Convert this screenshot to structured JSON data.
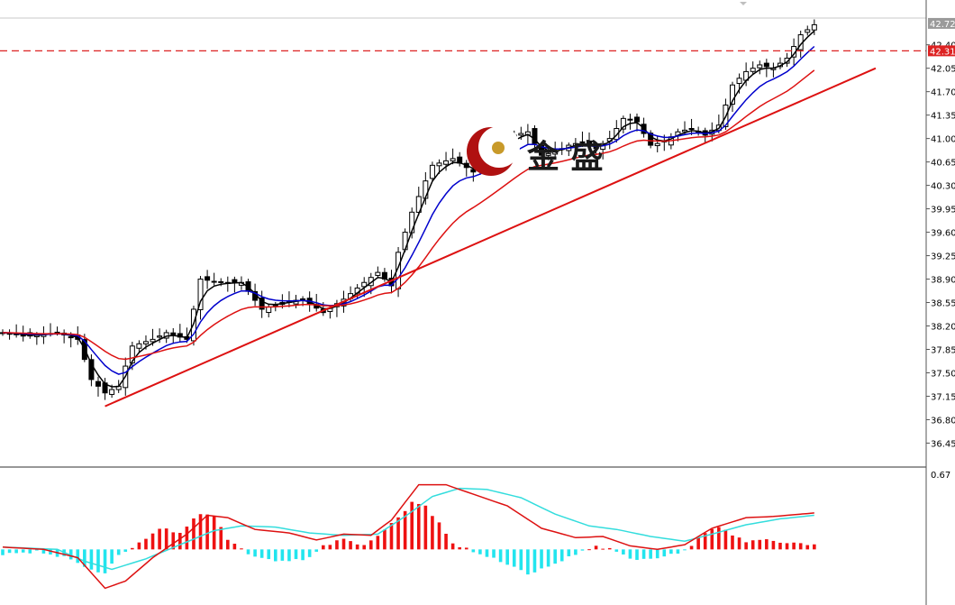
{
  "watermark": {
    "brand_text": "金 盛"
  },
  "colors": {
    "background": "#ffffff",
    "candle": "#000000",
    "ma_fast": "#000000",
    "ma_mid": "#0000cc",
    "ma_slow": "#dd1111",
    "trendline": "#dd1111",
    "price_line": "#dd2222",
    "macd_line": "#dd1111",
    "signal_line": "#33dddd",
    "hist_positive": "#ee1111",
    "hist_negative": "#22e5ee"
  },
  "chart_data": [
    {
      "type": "candlestick",
      "title": "",
      "ylim": [
        36.2,
        42.8
      ],
      "y_ticks": [
        "42.40",
        "42.05",
        "41.70",
        "41.35",
        "41.00",
        "40.65",
        "40.30",
        "39.95",
        "39.60",
        "39.25",
        "38.90",
        "38.55",
        "38.20",
        "37.85",
        "37.50",
        "37.15",
        "36.80",
        "36.45"
      ],
      "price_labels": {
        "top_label": "42.72",
        "current_price": "42.31"
      },
      "ohlc_keypoints": [
        {
          "i": 0,
          "c": 38.1
        },
        {
          "i": 4,
          "c": 38.05
        },
        {
          "i": 8,
          "c": 38.1
        },
        {
          "i": 11,
          "c": 38.0
        },
        {
          "i": 13,
          "c": 37.4
        },
        {
          "i": 15,
          "c": 37.2
        },
        {
          "i": 17,
          "c": 37.3
        },
        {
          "i": 19,
          "c": 37.9
        },
        {
          "i": 22,
          "c": 38.0
        },
        {
          "i": 24,
          "c": 38.1
        },
        {
          "i": 27,
          "c": 38.0
        },
        {
          "i": 29,
          "c": 38.9
        },
        {
          "i": 32,
          "c": 38.85
        },
        {
          "i": 35,
          "c": 38.85
        },
        {
          "i": 38,
          "c": 38.45
        },
        {
          "i": 41,
          "c": 38.55
        },
        {
          "i": 44,
          "c": 38.6
        },
        {
          "i": 47,
          "c": 38.4
        },
        {
          "i": 50,
          "c": 38.6
        },
        {
          "i": 53,
          "c": 38.85
        },
        {
          "i": 55,
          "c": 39.0
        },
        {
          "i": 57,
          "c": 38.8
        },
        {
          "i": 58,
          "c": 39.3
        },
        {
          "i": 60,
          "c": 39.9
        },
        {
          "i": 63,
          "c": 40.6
        },
        {
          "i": 66,
          "c": 40.7
        },
        {
          "i": 69,
          "c": 40.5
        },
        {
          "i": 72,
          "c": 40.8
        },
        {
          "i": 75,
          "c": 41.05
        },
        {
          "i": 77,
          "c": 41.1
        },
        {
          "i": 79,
          "c": 40.75
        },
        {
          "i": 81,
          "c": 40.8
        },
        {
          "i": 83,
          "c": 40.9
        },
        {
          "i": 85,
          "c": 40.95
        },
        {
          "i": 87,
          "c": 40.85
        },
        {
          "i": 89,
          "c": 41.0
        },
        {
          "i": 91,
          "c": 41.3
        },
        {
          "i": 93,
          "c": 41.25
        },
        {
          "i": 95,
          "c": 40.9
        },
        {
          "i": 97,
          "c": 40.95
        },
        {
          "i": 99,
          "c": 41.1
        },
        {
          "i": 101,
          "c": 41.15
        },
        {
          "i": 103,
          "c": 41.05
        },
        {
          "i": 105,
          "c": 41.2
        },
        {
          "i": 107,
          "c": 41.8
        },
        {
          "i": 109,
          "c": 42.0
        },
        {
          "i": 111,
          "c": 42.1
        },
        {
          "i": 113,
          "c": 42.05
        },
        {
          "i": 115,
          "c": 42.2
        },
        {
          "i": 117,
          "c": 42.55
        },
        {
          "i": 119,
          "c": 42.7
        }
      ],
      "moving_averages": [
        {
          "name": "",
          "color": "ma_fast",
          "period": "fast"
        },
        {
          "name": "",
          "color": "ma_mid",
          "period": "mid"
        },
        {
          "name": "",
          "color": "ma_slow",
          "period": "slow"
        }
      ],
      "trendline": {
        "from": {
          "i": 15,
          "price": 37.0
        },
        "to": {
          "i": 128,
          "price": 42.05
        }
      }
    },
    {
      "type": "macd",
      "title": "",
      "ylim": [
        -0.45,
        0.67
      ],
      "y_ticks": [
        "0.67"
      ],
      "histogram_keypoints": [
        {
          "i": 0,
          "v": -0.04
        },
        {
          "i": 5,
          "v": -0.02
        },
        {
          "i": 10,
          "v": -0.08
        },
        {
          "i": 13,
          "v": -0.18
        },
        {
          "i": 15,
          "v": -0.2
        },
        {
          "i": 17,
          "v": -0.05
        },
        {
          "i": 20,
          "v": 0.05
        },
        {
          "i": 23,
          "v": 0.18
        },
        {
          "i": 26,
          "v": 0.14
        },
        {
          "i": 29,
          "v": 0.31
        },
        {
          "i": 31,
          "v": 0.28
        },
        {
          "i": 33,
          "v": 0.09
        },
        {
          "i": 36,
          "v": -0.04
        },
        {
          "i": 39,
          "v": -0.09
        },
        {
          "i": 42,
          "v": -0.1
        },
        {
          "i": 45,
          "v": -0.07
        },
        {
          "i": 47,
          "v": 0.03
        },
        {
          "i": 50,
          "v": 0.09
        },
        {
          "i": 53,
          "v": 0.03
        },
        {
          "i": 55,
          "v": 0.12
        },
        {
          "i": 58,
          "v": 0.27
        },
        {
          "i": 60,
          "v": 0.4
        },
        {
          "i": 62,
          "v": 0.37
        },
        {
          "i": 64,
          "v": 0.22
        },
        {
          "i": 66,
          "v": 0.05
        },
        {
          "i": 69,
          "v": -0.02
        },
        {
          "i": 72,
          "v": -0.08
        },
        {
          "i": 75,
          "v": -0.15
        },
        {
          "i": 77,
          "v": -0.21
        },
        {
          "i": 79,
          "v": -0.17
        },
        {
          "i": 81,
          "v": -0.12
        },
        {
          "i": 83,
          "v": -0.07
        },
        {
          "i": 85,
          "v": -0.01
        },
        {
          "i": 87,
          "v": 0.02
        },
        {
          "i": 89,
          "v": 0.01
        },
        {
          "i": 91,
          "v": -0.05
        },
        {
          "i": 93,
          "v": -0.09
        },
        {
          "i": 95,
          "v": -0.08
        },
        {
          "i": 97,
          "v": -0.06
        },
        {
          "i": 99,
          "v": -0.03
        },
        {
          "i": 101,
          "v": 0.03
        },
        {
          "i": 103,
          "v": 0.15
        },
        {
          "i": 105,
          "v": 0.19
        },
        {
          "i": 107,
          "v": 0.13
        },
        {
          "i": 109,
          "v": 0.06
        },
        {
          "i": 111,
          "v": 0.09
        },
        {
          "i": 114,
          "v": 0.06
        },
        {
          "i": 117,
          "v": 0.05
        },
        {
          "i": 119,
          "v": 0.04
        }
      ],
      "macd_keypoints": [
        {
          "i": 0,
          "v": 0.02
        },
        {
          "i": 6,
          "v": 0.0
        },
        {
          "i": 11,
          "v": -0.07
        },
        {
          "i": 15,
          "v": -0.33
        },
        {
          "i": 18,
          "v": -0.27
        },
        {
          "i": 22,
          "v": -0.07
        },
        {
          "i": 27,
          "v": 0.13
        },
        {
          "i": 30,
          "v": 0.29
        },
        {
          "i": 33,
          "v": 0.27
        },
        {
          "i": 37,
          "v": 0.17
        },
        {
          "i": 42,
          "v": 0.14
        },
        {
          "i": 46,
          "v": 0.08
        },
        {
          "i": 50,
          "v": 0.13
        },
        {
          "i": 54,
          "v": 0.12
        },
        {
          "i": 57,
          "v": 0.25
        },
        {
          "i": 61,
          "v": 0.55
        },
        {
          "i": 65,
          "v": 0.55
        },
        {
          "i": 69,
          "v": 0.47
        },
        {
          "i": 74,
          "v": 0.37
        },
        {
          "i": 79,
          "v": 0.18
        },
        {
          "i": 84,
          "v": 0.1
        },
        {
          "i": 88,
          "v": 0.11
        },
        {
          "i": 92,
          "v": 0.03
        },
        {
          "i": 96,
          "v": 0.0
        },
        {
          "i": 100,
          "v": 0.04
        },
        {
          "i": 104,
          "v": 0.18
        },
        {
          "i": 109,
          "v": 0.27
        },
        {
          "i": 113,
          "v": 0.28
        },
        {
          "i": 119,
          "v": 0.31
        }
      ],
      "signal_keypoints": [
        {
          "i": 0,
          "v": 0.02
        },
        {
          "i": 8,
          "v": 0.0
        },
        {
          "i": 12,
          "v": -0.1
        },
        {
          "i": 16,
          "v": -0.17
        },
        {
          "i": 21,
          "v": -0.08
        },
        {
          "i": 26,
          "v": 0.04
        },
        {
          "i": 31,
          "v": 0.16
        },
        {
          "i": 35,
          "v": 0.2
        },
        {
          "i": 40,
          "v": 0.19
        },
        {
          "i": 45,
          "v": 0.14
        },
        {
          "i": 50,
          "v": 0.12
        },
        {
          "i": 55,
          "v": 0.13
        },
        {
          "i": 59,
          "v": 0.28
        },
        {
          "i": 63,
          "v": 0.45
        },
        {
          "i": 67,
          "v": 0.52
        },
        {
          "i": 71,
          "v": 0.51
        },
        {
          "i": 76,
          "v": 0.44
        },
        {
          "i": 81,
          "v": 0.3
        },
        {
          "i": 86,
          "v": 0.2
        },
        {
          "i": 90,
          "v": 0.17
        },
        {
          "i": 95,
          "v": 0.11
        },
        {
          "i": 100,
          "v": 0.07
        },
        {
          "i": 104,
          "v": 0.13
        },
        {
          "i": 109,
          "v": 0.21
        },
        {
          "i": 114,
          "v": 0.26
        },
        {
          "i": 119,
          "v": 0.29
        }
      ]
    }
  ]
}
